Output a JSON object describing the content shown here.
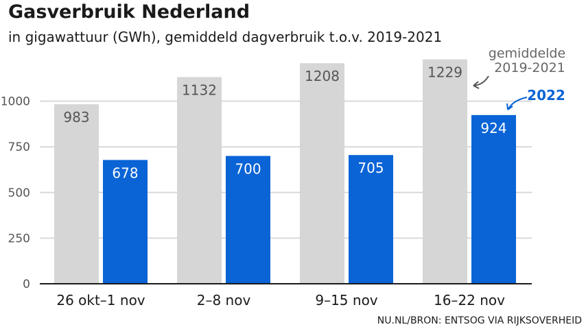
{
  "header": {
    "title": "Gasverbruik Nederland",
    "subtitle": "in gigawattuur (GWh), gemiddeld dagverbruik t.o.v. 2019-2021"
  },
  "footer": {
    "source": "NU.NL/BRON: ENTSOG VIA RIJKSOVERHEID"
  },
  "colors": {
    "baseline": "#d6d6d6",
    "current": "#0a64d6",
    "grid": "#d9d9d9",
    "axis": "#1a1a1a"
  },
  "chart_data": {
    "type": "bar",
    "title": "Gasverbruik Nederland",
    "subtitle": "in gigawattuur (GWh), gemiddeld dagverbruik t.o.v. 2019-2021",
    "xlabel": "",
    "ylabel": "",
    "categories": [
      "26 okt–1 nov",
      "2–8 nov",
      "9–15 nov",
      "16–22 nov"
    ],
    "series": [
      {
        "name": "gemiddelde 2019-2021",
        "values": [
          983,
          1132,
          1208,
          1229
        ]
      },
      {
        "name": "2022",
        "values": [
          678,
          700,
          705,
          924
        ]
      }
    ],
    "ylim": [
      0,
      1300
    ],
    "yticks": [
      0,
      250,
      500,
      750,
      1000
    ],
    "grid": true,
    "legend": "annotations on last category",
    "annotations": {
      "baseline_line1": "gemiddelde",
      "baseline_line2": "2019-2021",
      "current": "2022"
    }
  }
}
